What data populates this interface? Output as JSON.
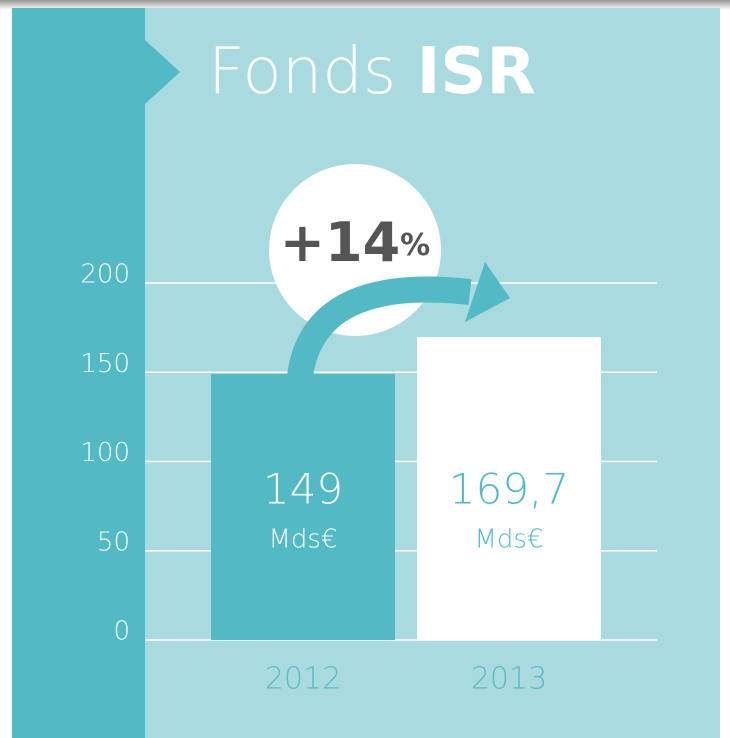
{
  "chart_data": {
    "type": "bar",
    "title_light": "Fonds",
    "title_bold": "ISR",
    "annotation": "+14",
    "annotation_unit": "%",
    "categories": [
      "2012",
      "2013"
    ],
    "values": [
      149,
      169.7
    ],
    "value_labels": [
      "149",
      "169,7"
    ],
    "value_unit": "Mds€",
    "colors": [
      "#52bac4",
      "#ffffff"
    ],
    "ylim": [
      0,
      200
    ],
    "yticks": [
      0,
      50,
      100,
      150,
      200
    ],
    "grid": true
  }
}
